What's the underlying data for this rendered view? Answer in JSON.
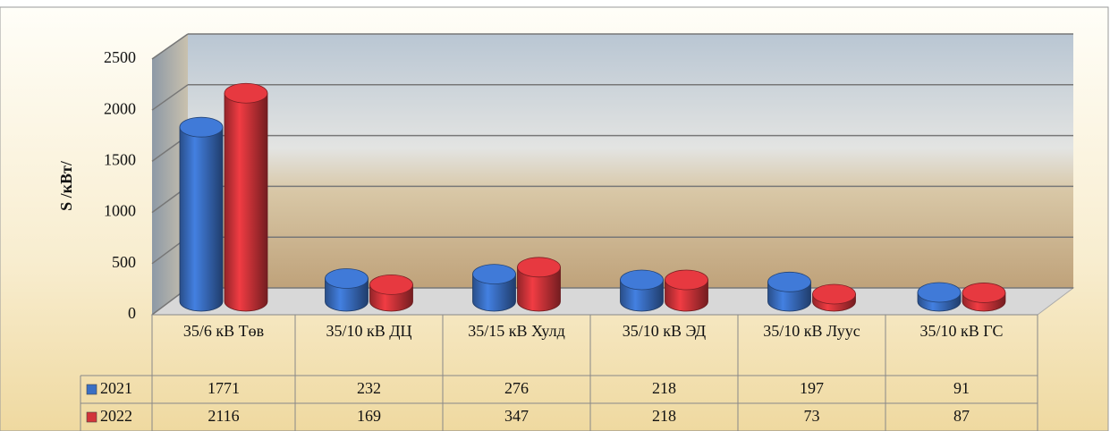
{
  "chart_data": {
    "type": "bar",
    "y_label": "S /кВт/",
    "categories": [
      "35/6 кВ Төв",
      "35/10 кВ ДЦ",
      "35/15 кВ Хулд",
      "35/10 кВ ЭД",
      "35/10 кВ Луус",
      "35/10 кВ ГС"
    ],
    "series": [
      {
        "name": "2021",
        "color": "#3a6fc4",
        "values": [
          1771,
          232,
          276,
          218,
          197,
          91
        ]
      },
      {
        "name": "2022",
        "color": "#d2343a",
        "values": [
          2116,
          169,
          347,
          218,
          73,
          87
        ]
      }
    ],
    "ylim": [
      0,
      2500
    ],
    "yticks": [
      0,
      500,
      1000,
      1500,
      2000,
      2500
    ],
    "grid": true,
    "data_table": true
  }
}
